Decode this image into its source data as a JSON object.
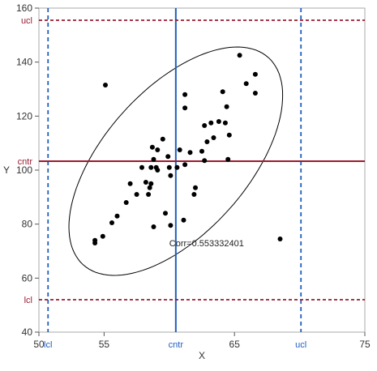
{
  "chart_data": {
    "type": "scatter",
    "xlabel": "X",
    "ylabel": "Y",
    "xlim": [
      50,
      75
    ],
    "ylim": [
      40,
      160
    ],
    "x_ticks": [
      50,
      55,
      65,
      75
    ],
    "y_ticks": [
      40,
      60,
      80,
      100,
      120,
      140,
      160
    ],
    "grid": false,
    "points": [
      {
        "x": 55.1,
        "y": 131.5
      },
      {
        "x": 65.4,
        "y": 142.5
      },
      {
        "x": 65.9,
        "y": 132.0
      },
      {
        "x": 66.6,
        "y": 135.5
      },
      {
        "x": 66.6,
        "y": 128.5
      },
      {
        "x": 64.1,
        "y": 129.0
      },
      {
        "x": 64.4,
        "y": 123.5
      },
      {
        "x": 61.2,
        "y": 128.0
      },
      {
        "x": 61.2,
        "y": 123.0
      },
      {
        "x": 62.7,
        "y": 116.5
      },
      {
        "x": 63.2,
        "y": 117.5
      },
      {
        "x": 63.8,
        "y": 118.0
      },
      {
        "x": 64.3,
        "y": 117.5
      },
      {
        "x": 64.6,
        "y": 113.0
      },
      {
        "x": 63.4,
        "y": 112.0
      },
      {
        "x": 62.9,
        "y": 110.5
      },
      {
        "x": 62.5,
        "y": 107.0
      },
      {
        "x": 64.5,
        "y": 104.0
      },
      {
        "x": 62.7,
        "y": 103.5
      },
      {
        "x": 61.6,
        "y": 106.5
      },
      {
        "x": 60.8,
        "y": 107.5
      },
      {
        "x": 59.5,
        "y": 111.5
      },
      {
        "x": 59.1,
        "y": 107.5
      },
      {
        "x": 58.7,
        "y": 108.5
      },
      {
        "x": 59.9,
        "y": 105.0
      },
      {
        "x": 58.8,
        "y": 104.0
      },
      {
        "x": 59.0,
        "y": 101.0
      },
      {
        "x": 58.6,
        "y": 101.0
      },
      {
        "x": 59.1,
        "y": 100.0
      },
      {
        "x": 60.0,
        "y": 101.0
      },
      {
        "x": 60.6,
        "y": 101.0
      },
      {
        "x": 61.2,
        "y": 102.0
      },
      {
        "x": 60.1,
        "y": 98.0
      },
      {
        "x": 57.9,
        "y": 101.0
      },
      {
        "x": 58.2,
        "y": 95.5
      },
      {
        "x": 58.6,
        "y": 95.0
      },
      {
        "x": 58.5,
        "y": 93.5
      },
      {
        "x": 57.0,
        "y": 95.0
      },
      {
        "x": 57.5,
        "y": 91.0
      },
      {
        "x": 58.4,
        "y": 91.0
      },
      {
        "x": 61.9,
        "y": 91.0
      },
      {
        "x": 62.0,
        "y": 93.5
      },
      {
        "x": 56.7,
        "y": 88.0
      },
      {
        "x": 56.0,
        "y": 83.0
      },
      {
        "x": 55.6,
        "y": 80.5
      },
      {
        "x": 54.9,
        "y": 75.5
      },
      {
        "x": 54.3,
        "y": 74.0
      },
      {
        "x": 54.3,
        "y": 73.0
      },
      {
        "x": 59.7,
        "y": 84.0
      },
      {
        "x": 60.1,
        "y": 79.5
      },
      {
        "x": 61.1,
        "y": 81.5
      },
      {
        "x": 58.8,
        "y": 79.0
      },
      {
        "x": 68.5,
        "y": 74.5
      }
    ],
    "reference_lines": {
      "x": [
        {
          "label": "lcl",
          "value": 50.7
        },
        {
          "label": "cntr",
          "value": 60.5
        },
        {
          "label": "ucl",
          "value": 70.1
        }
      ],
      "y": [
        {
          "label": "ucl",
          "value": 155.5
        },
        {
          "label": "cntr",
          "value": 103.3
        },
        {
          "label": "lcl",
          "value": 52.0
        }
      ]
    },
    "ellipse": {
      "center": {
        "x": 60.5,
        "y": 103.3
      },
      "annotation": "Corr=0.553332401",
      "annotation_anchor": {
        "x": 60.0,
        "y": 73.0
      }
    },
    "colors": {
      "points": "#000000",
      "x_reference": "#1f5fbf",
      "y_reference": "#9b1b30",
      "ellipse": "#000000",
      "frame": "#aaaaaa"
    }
  }
}
